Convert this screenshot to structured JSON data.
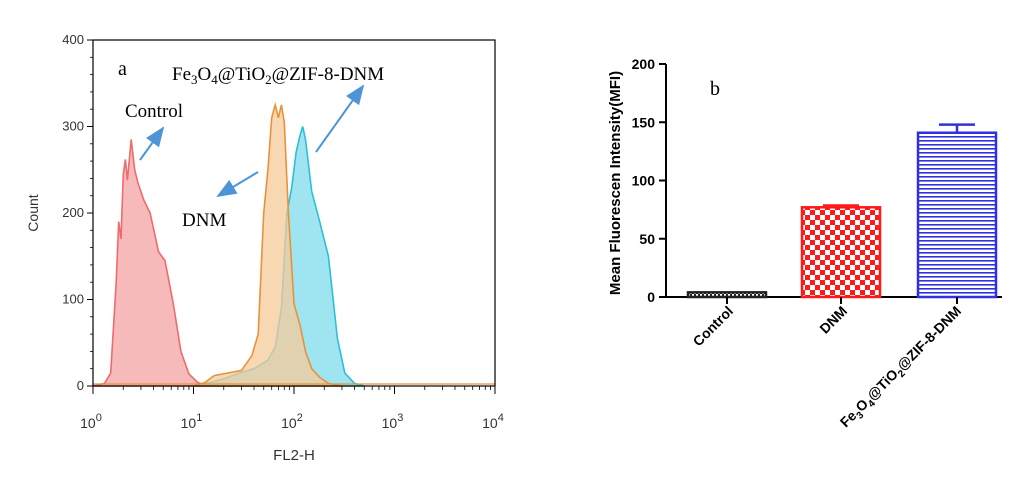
{
  "chart_data": [
    {
      "type": "area",
      "panel_label": "a",
      "xlabel": "FL2-H",
      "ylabel": "Count",
      "x_scale": "log",
      "xlim": [
        1,
        10000
      ],
      "ylim": [
        0,
        400
      ],
      "x_ticks": [
        {
          "value": 1,
          "base": "10",
          "exp": "0"
        },
        {
          "value": 10,
          "base": "10",
          "exp": "1"
        },
        {
          "value": 100,
          "base": "10",
          "exp": "2"
        },
        {
          "value": 1000,
          "base": "10",
          "exp": "3"
        },
        {
          "value": 10000,
          "base": "10",
          "exp": "4"
        }
      ],
      "y_ticks": [
        "0",
        "100",
        "200",
        "300",
        "400"
      ],
      "series": [
        {
          "name": "Control",
          "color": "#ef6b6b",
          "fill": "#f4a3a3",
          "points": [
            [
              1.0,
              0
            ],
            [
              1.3,
              3
            ],
            [
              1.5,
              15
            ],
            [
              1.7,
              120
            ],
            [
              1.8,
              190
            ],
            [
              1.9,
              170
            ],
            [
              2.0,
              245
            ],
            [
              2.1,
              262
            ],
            [
              2.2,
              238
            ],
            [
              2.4,
              285
            ],
            [
              2.6,
              250
            ],
            [
              2.8,
              235
            ],
            [
              3.2,
              215
            ],
            [
              3.7,
              200
            ],
            [
              4.5,
              155
            ],
            [
              5.2,
              145
            ],
            [
              6.3,
              95
            ],
            [
              7.5,
              40
            ],
            [
              9,
              14
            ],
            [
              11,
              4
            ],
            [
              13,
              1
            ],
            [
              20,
              3
            ],
            [
              30,
              2
            ],
            [
              40,
              0
            ]
          ]
        },
        {
          "name": "Fe3O4@TiO2@ZIF-8-DNM",
          "color": "#2bbfd8",
          "fill": "#7fdcec",
          "points": [
            [
              10,
              0
            ],
            [
              16,
              5
            ],
            [
              22,
              10
            ],
            [
              30,
              16
            ],
            [
              40,
              20
            ],
            [
              55,
              30
            ],
            [
              65,
              45
            ],
            [
              75,
              90
            ],
            [
              85,
              200
            ],
            [
              95,
              230
            ],
            [
              105,
              270
            ],
            [
              115,
              290
            ],
            [
              122,
              300
            ],
            [
              130,
              285
            ],
            [
              150,
              225
            ],
            [
              180,
              190
            ],
            [
              220,
              150
            ],
            [
              270,
              55
            ],
            [
              320,
              15
            ],
            [
              400,
              3
            ],
            [
              500,
              0
            ]
          ]
        },
        {
          "name": "DNM",
          "color": "#e8923a",
          "fill": "#f6c99a",
          "points": [
            [
              10,
              0
            ],
            [
              13,
              4
            ],
            [
              16,
              12
            ],
            [
              22,
              15
            ],
            [
              30,
              18
            ],
            [
              38,
              35
            ],
            [
              44,
              60
            ],
            [
              50,
              200
            ],
            [
              55,
              250
            ],
            [
              60,
              310
            ],
            [
              65,
              325
            ],
            [
              70,
              310
            ],
            [
              75,
              325
            ],
            [
              80,
              305
            ],
            [
              88,
              200
            ],
            [
              100,
              95
            ],
            [
              115,
              70
            ],
            [
              130,
              40
            ],
            [
              150,
              20
            ],
            [
              180,
              10
            ],
            [
              220,
              3
            ],
            [
              300,
              0
            ]
          ]
        }
      ],
      "annotations": [
        "Control",
        "DNM",
        "Fe3O4@TiO2@ZIF-8-DNM"
      ]
    },
    {
      "type": "bar",
      "panel_label": "b",
      "ylabel": "Mean Fluorescen Intensity(MFI)",
      "ylim": [
        0,
        200
      ],
      "y_ticks": [
        "0",
        "50",
        "100",
        "150",
        "200"
      ],
      "categories": [
        "Control",
        "DNM",
        "Fe3O4@TiO2@ZIF-8-DNM"
      ],
      "values": [
        4,
        77,
        141
      ],
      "errors": [
        0.5,
        1.5,
        7
      ],
      "colors": [
        "#222222",
        "#ff1a1a",
        "#3030e0"
      ],
      "patterns": [
        "checker-fine",
        "checker",
        "horizontal-lines"
      ]
    }
  ]
}
